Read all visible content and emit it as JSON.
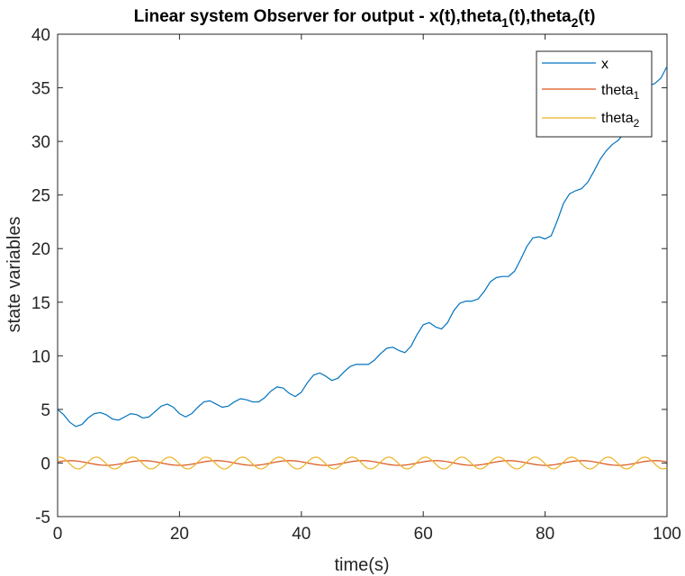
{
  "chart_data": {
    "type": "line",
    "title": "Linear system Observer for output - x(t),theta",
    "title_full": "Linear system Observer for output - x(t),theta_1(t),theta_2(t)",
    "title_parts": {
      "prefix": "Linear system Observer for output - x(t),theta",
      "sub1": "1",
      "mid": "(t),theta",
      "sub2": "2",
      "suffix": "(t)"
    },
    "xlabel": "time(s)",
    "ylabel": "state variables",
    "xlim": [
      0,
      100
    ],
    "ylim": [
      -5,
      40
    ],
    "x_ticks": [
      "0",
      "20",
      "40",
      "60",
      "80",
      "100"
    ],
    "y_ticks": [
      "-5",
      "0",
      "5",
      "10",
      "15",
      "20",
      "25",
      "30",
      "35",
      "40"
    ],
    "grid": false,
    "legend_position": "top-right",
    "series": [
      {
        "name": "x",
        "legend_label": "x",
        "legend_sub": "",
        "color": "#0072BD",
        "x": [
          0,
          1,
          2,
          3,
          4,
          5,
          6,
          7,
          8,
          9,
          10,
          11,
          12,
          13,
          14,
          15,
          16,
          17,
          18,
          19,
          20,
          21,
          22,
          23,
          24,
          25,
          26,
          27,
          28,
          29,
          30,
          31,
          32,
          33,
          34,
          35,
          36,
          37,
          38,
          39,
          40,
          41,
          42,
          43,
          44,
          45,
          46,
          47,
          48,
          49,
          50,
          51,
          52,
          53,
          54,
          55,
          56,
          57,
          58,
          59,
          60,
          61,
          62,
          63,
          64,
          65,
          66,
          67,
          68,
          69,
          70,
          71,
          72,
          73,
          74,
          75,
          76,
          77,
          78,
          79,
          80,
          81,
          82,
          83,
          84,
          85,
          86,
          87,
          88,
          89,
          90,
          91,
          92,
          93,
          94,
          95,
          96,
          97,
          98,
          99,
          100
        ],
        "y": [
          5.0,
          4.5,
          3.8,
          3.4,
          3.6,
          4.2,
          4.6,
          4.7,
          4.5,
          4.1,
          4.0,
          4.3,
          4.6,
          4.5,
          4.2,
          4.3,
          4.8,
          5.3,
          5.5,
          5.2,
          4.6,
          4.3,
          4.6,
          5.2,
          5.7,
          5.8,
          5.5,
          5.2,
          5.3,
          5.7,
          6.0,
          5.9,
          5.7,
          5.7,
          6.1,
          6.7,
          7.1,
          7.0,
          6.5,
          6.2,
          6.6,
          7.5,
          8.2,
          8.4,
          8.1,
          7.7,
          7.9,
          8.5,
          9.0,
          9.2,
          9.2,
          9.2,
          9.6,
          10.2,
          10.7,
          10.8,
          10.5,
          10.3,
          10.9,
          12.0,
          12.9,
          13.1,
          12.7,
          12.5,
          13.1,
          14.2,
          14.9,
          15.1,
          15.1,
          15.3,
          16.0,
          16.9,
          17.3,
          17.4,
          17.4,
          17.9,
          19.0,
          20.2,
          21.0,
          21.1,
          20.9,
          21.2,
          22.6,
          24.2,
          25.1,
          25.4,
          25.6,
          26.2,
          27.2,
          28.3,
          29.1,
          29.7,
          30.1,
          30.8,
          32.2,
          33.7,
          34.8,
          35.2,
          35.4,
          35.9,
          37.0
        ]
      },
      {
        "name": "theta_1",
        "legend_label": "theta",
        "legend_sub": "1",
        "color": "#D95319",
        "amplitude": 0.22,
        "period": 12,
        "phase": 0.5,
        "x_range": [
          0,
          100
        ]
      },
      {
        "name": "theta_2",
        "legend_label": "theta",
        "legend_sub": "2",
        "color": "#EDB120",
        "amplitude": 0.55,
        "period": 6,
        "phase": 1.2,
        "x_range": [
          0,
          100
        ]
      }
    ]
  }
}
